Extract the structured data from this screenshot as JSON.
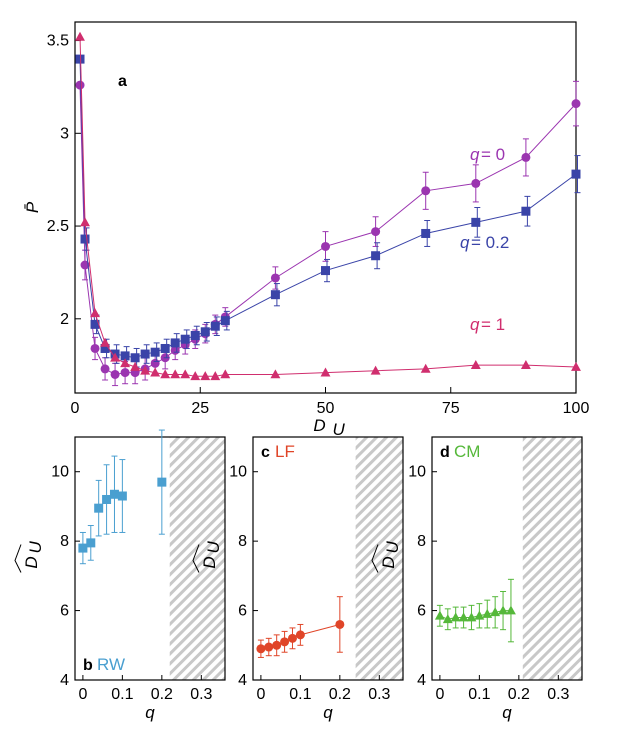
{
  "chart_data": [
    {
      "id": "a",
      "type": "line",
      "panel_letter": "a",
      "xlabel_main": "D",
      "xlabel_sub": "U",
      "ylabel": "P̄",
      "xlim": [
        0,
        100
      ],
      "ylim": [
        1.6,
        3.6
      ],
      "xticks": [
        0,
        25,
        50,
        75,
        100
      ],
      "yticks": [
        2,
        2.5,
        3,
        3.5
      ],
      "ytick_labels": [
        "2",
        "2.5",
        "3",
        "3.5"
      ],
      "series": [
        {
          "name": "q = 0",
          "q_text": "q",
          "eq_text": " = 0",
          "color": "#9b35b0",
          "marker": "circle",
          "x": [
            1,
            2,
            4,
            6,
            8,
            10,
            12,
            14,
            16,
            18,
            20,
            22,
            24,
            26,
            28,
            30,
            40,
            50,
            60,
            70,
            80,
            90,
            100
          ],
          "y": [
            3.26,
            2.29,
            1.84,
            1.73,
            1.7,
            1.71,
            1.71,
            1.73,
            1.76,
            1.79,
            1.83,
            1.86,
            1.89,
            1.92,
            1.97,
            2.01,
            2.22,
            2.39,
            2.47,
            2.69,
            2.73,
            2.87,
            3.16
          ],
          "err": [
            0,
            0.08,
            0.06,
            0.06,
            0.06,
            0.06,
            0.06,
            0.06,
            0.06,
            0.06,
            0.05,
            0.05,
            0.05,
            0.05,
            0.05,
            0.05,
            0.06,
            0.08,
            0.08,
            0.1,
            0.1,
            0.1,
            0.12
          ]
        },
        {
          "name": "q = 0.2",
          "q_text": "q",
          "eq_text": " = 0.2",
          "color": "#3a44a8",
          "marker": "square",
          "x": [
            1,
            2,
            4,
            6,
            8,
            10,
            12,
            14,
            16,
            18,
            20,
            22,
            24,
            26,
            28,
            30,
            40,
            50,
            60,
            70,
            80,
            90,
            100
          ],
          "y": [
            3.4,
            2.43,
            1.97,
            1.84,
            1.81,
            1.8,
            1.79,
            1.81,
            1.82,
            1.84,
            1.87,
            1.89,
            1.91,
            1.93,
            1.96,
            1.99,
            2.13,
            2.26,
            2.34,
            2.46,
            2.52,
            2.58,
            2.78
          ],
          "err": [
            0,
            0.06,
            0.05,
            0.05,
            0.05,
            0.05,
            0.05,
            0.05,
            0.05,
            0.05,
            0.05,
            0.05,
            0.05,
            0.05,
            0.05,
            0.05,
            0.06,
            0.06,
            0.07,
            0.07,
            0.08,
            0.08,
            0.1
          ]
        },
        {
          "name": "q = 1",
          "q_text": "q",
          "eq_text": " = 1",
          "color": "#d02e6e",
          "marker": "triangle",
          "x": [
            1,
            2,
            4,
            6,
            8,
            10,
            12,
            14,
            16,
            18,
            20,
            22,
            24,
            26,
            28,
            30,
            40,
            50,
            60,
            70,
            80,
            90,
            100
          ],
          "y": [
            3.52,
            2.52,
            2.03,
            1.87,
            1.79,
            1.76,
            1.74,
            1.72,
            1.71,
            1.7,
            1.7,
            1.7,
            1.69,
            1.69,
            1.69,
            1.7,
            1.7,
            1.71,
            1.72,
            1.73,
            1.75,
            1.75,
            1.74
          ]
        }
      ]
    },
    {
      "id": "b",
      "type": "scatter",
      "panel_letter": "b",
      "name": "RW",
      "color": "#4a9fd0",
      "marker": "square",
      "xlabel": "q",
      "ylabel_main": "D",
      "ylabel_sub": "U",
      "xlim": [
        -0.02,
        0.36
      ],
      "ylim": [
        4,
        11
      ],
      "xticks": [
        0,
        0.1,
        0.2,
        0.3
      ],
      "xtick_labels": [
        "0",
        "0.1",
        "0.2",
        "0.3"
      ],
      "yticks": [
        4,
        6,
        8,
        10
      ],
      "hatch_from": 0.22,
      "x": [
        0,
        0.02,
        0.04,
        0.06,
        0.08,
        0.1,
        0.2
      ],
      "y": [
        7.8,
        7.95,
        8.95,
        9.2,
        9.35,
        9.3,
        9.7
      ],
      "err": [
        0.45,
        0.5,
        0.8,
        1.0,
        1.1,
        1.05,
        1.5
      ]
    },
    {
      "id": "c",
      "type": "scatter",
      "panel_letter": "c",
      "name": "LF",
      "color": "#e04528",
      "marker": "circle",
      "xlabel": "q",
      "ylabel_main": "D",
      "ylabel_sub": "U",
      "xlim": [
        -0.02,
        0.36
      ],
      "ylim": [
        4,
        11
      ],
      "xticks": [
        0,
        0.1,
        0.2,
        0.3
      ],
      "xtick_labels": [
        "0",
        "0.1",
        "0.2",
        "0.3"
      ],
      "yticks": [
        4,
        6,
        8,
        10
      ],
      "hatch_from": 0.24,
      "x": [
        0,
        0.02,
        0.04,
        0.06,
        0.08,
        0.1,
        0.2
      ],
      "y": [
        4.9,
        4.95,
        5.0,
        5.1,
        5.2,
        5.3,
        5.6
      ],
      "err": [
        0.25,
        0.25,
        0.3,
        0.3,
        0.3,
        0.3,
        0.8
      ]
    },
    {
      "id": "d",
      "type": "scatter",
      "panel_letter": "d",
      "name": "CM",
      "color": "#55b83a",
      "marker": "triangle",
      "xlabel": "q",
      "ylabel_main": "D",
      "ylabel_sub": "U",
      "xlim": [
        -0.02,
        0.36
      ],
      "ylim": [
        4,
        11
      ],
      "xticks": [
        0,
        0.1,
        0.2,
        0.3
      ],
      "xtick_labels": [
        "0",
        "0.1",
        "0.2",
        "0.3"
      ],
      "yticks": [
        4,
        6,
        8,
        10
      ],
      "hatch_from": 0.21,
      "x": [
        0,
        0.02,
        0.04,
        0.06,
        0.08,
        0.1,
        0.12,
        0.14,
        0.16,
        0.18
      ],
      "y": [
        5.85,
        5.75,
        5.8,
        5.8,
        5.8,
        5.85,
        5.9,
        5.95,
        6.0,
        6.0
      ],
      "err": [
        0.3,
        0.3,
        0.3,
        0.3,
        0.35,
        0.35,
        0.4,
        0.45,
        0.55,
        0.9
      ]
    }
  ]
}
